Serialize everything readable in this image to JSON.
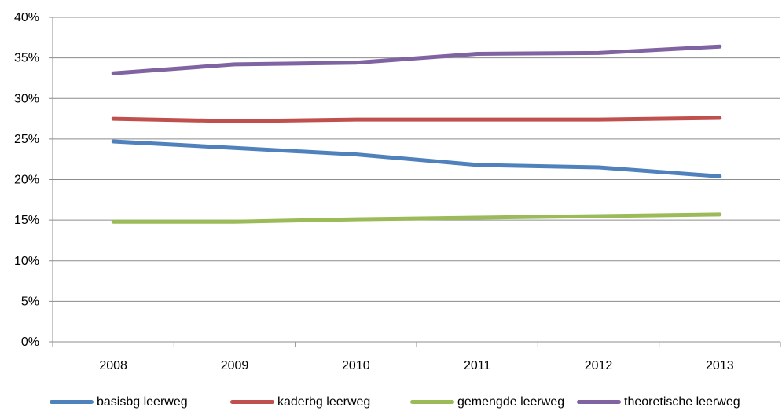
{
  "chart_data": {
    "type": "line",
    "title": "",
    "xlabel": "",
    "ylabel": "",
    "categories": [
      "2008",
      "2009",
      "2010",
      "2011",
      "2012",
      "2013"
    ],
    "ylim": [
      0,
      40
    ],
    "y_ticks": [
      "0%",
      "5%",
      "10%",
      "15%",
      "20%",
      "25%",
      "30%",
      "35%",
      "40%"
    ],
    "y_unit": "%",
    "grid": "horizontal",
    "legend_position": "bottom",
    "series": [
      {
        "name": "basisbg leerweg",
        "color": "#4F81BD",
        "values": [
          24.7,
          23.9,
          23.1,
          21.8,
          21.5,
          20.4
        ]
      },
      {
        "name": "kaderbg leerweg",
        "color": "#C0504D",
        "values": [
          27.5,
          27.2,
          27.4,
          27.4,
          27.4,
          27.6
        ]
      },
      {
        "name": "gemengde leerweg",
        "color": "#9BBB59",
        "values": [
          14.8,
          14.8,
          15.1,
          15.3,
          15.5,
          15.7
        ]
      },
      {
        "name": "theoretische leerweg",
        "color": "#8064A2",
        "values": [
          33.1,
          34.2,
          34.4,
          35.5,
          35.6,
          36.4
        ]
      }
    ]
  }
}
